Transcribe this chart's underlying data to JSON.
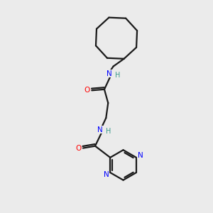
{
  "background_color": "#ebebeb",
  "bond_color": "#1a1a1a",
  "N_color": "#0000ff",
  "O_color": "#ff0000",
  "H_color": "#3a9a8a",
  "line_width": 1.6,
  "figsize": [
    3.0,
    3.0
  ],
  "dpi": 100,
  "xlim": [
    0,
    10
  ],
  "ylim": [
    0,
    10
  ]
}
